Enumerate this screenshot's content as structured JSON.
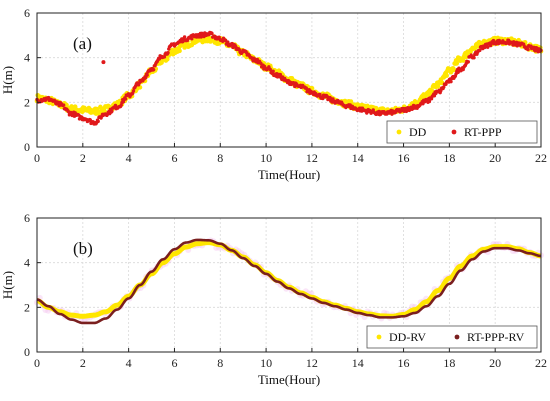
{
  "chart_data": [
    {
      "type": "scatter",
      "panel_label": "(a)",
      "xlabel": "Time(Hour)",
      "ylabel": "H(m)",
      "xlim": [
        0,
        22
      ],
      "ylim": [
        0,
        6
      ],
      "xticks": [
        0,
        2,
        4,
        6,
        8,
        10,
        12,
        14,
        16,
        18,
        20,
        22
      ],
      "yticks": [
        0,
        2,
        4,
        6
      ],
      "grid": true,
      "legend_position": "bottom-right",
      "x": [
        0,
        0.5,
        1,
        1.5,
        2,
        2.5,
        3,
        3.5,
        4,
        4.5,
        5,
        5.5,
        6,
        6.5,
        7,
        7.5,
        8,
        8.5,
        9,
        9.5,
        10,
        10.5,
        11,
        11.5,
        12,
        12.5,
        13,
        13.5,
        14,
        14.5,
        15,
        15.5,
        16,
        16.5,
        17,
        17.5,
        18,
        18.5,
        19,
        19.5,
        20,
        20.5,
        21,
        21.5,
        22
      ],
      "series": [
        {
          "name": "DD",
          "color": "#FFE600",
          "values": [
            2.2,
            2.1,
            1.9,
            1.7,
            1.65,
            1.6,
            1.7,
            1.9,
            2.3,
            2.8,
            3.4,
            3.9,
            4.3,
            4.6,
            4.8,
            4.85,
            4.75,
            4.5,
            4.2,
            3.9,
            3.6,
            3.3,
            3.0,
            2.75,
            2.5,
            2.3,
            2.1,
            1.95,
            1.8,
            1.7,
            1.62,
            1.6,
            1.7,
            1.95,
            2.3,
            2.8,
            3.4,
            3.95,
            4.4,
            4.65,
            4.75,
            4.75,
            4.65,
            4.5,
            4.35
          ]
        },
        {
          "name": "RT-PPP",
          "color": "#E0191B",
          "values": [
            2.1,
            2.15,
            1.9,
            1.5,
            1.3,
            1.1,
            1.5,
            1.8,
            2.3,
            2.9,
            3.5,
            4.1,
            4.6,
            4.85,
            5.0,
            5.05,
            4.85,
            4.55,
            4.25,
            3.9,
            3.55,
            3.2,
            2.9,
            2.7,
            2.45,
            2.25,
            2.05,
            1.85,
            1.7,
            1.6,
            1.5,
            1.55,
            1.65,
            1.8,
            2.05,
            2.45,
            2.95,
            3.5,
            4.05,
            4.5,
            4.7,
            4.7,
            4.6,
            4.45,
            4.3
          ]
        }
      ],
      "outlier": {
        "series": "RT-PPP",
        "x": 2.9,
        "y": 3.8
      }
    },
    {
      "type": "line",
      "panel_label": "(b)",
      "xlabel": "Time(Hour)",
      "ylabel": "H(m)",
      "xlim": [
        0,
        22
      ],
      "ylim": [
        0,
        6
      ],
      "xticks": [
        0,
        2,
        4,
        6,
        8,
        10,
        12,
        14,
        16,
        18,
        20,
        22
      ],
      "yticks": [
        0,
        2,
        4,
        6
      ],
      "grid": true,
      "legend_position": "bottom-right",
      "x": [
        0,
        0.5,
        1,
        1.5,
        2,
        2.5,
        3,
        3.5,
        4,
        4.5,
        5,
        5.5,
        6,
        6.5,
        7,
        7.5,
        8,
        8.5,
        9,
        9.5,
        10,
        10.5,
        11,
        11.5,
        12,
        12.5,
        13,
        13.5,
        14,
        14.5,
        15,
        15.5,
        16,
        16.5,
        17,
        17.5,
        18,
        18.5,
        19,
        19.5,
        20,
        20.5,
        21,
        21.5,
        22
      ],
      "series": [
        {
          "name": "DD-RV",
          "color": "#FFE600",
          "values": [
            2.3,
            2.0,
            1.8,
            1.65,
            1.6,
            1.65,
            1.8,
            2.1,
            2.5,
            3.0,
            3.5,
            4.0,
            4.4,
            4.7,
            4.85,
            4.9,
            4.8,
            4.55,
            4.25,
            3.9,
            3.55,
            3.2,
            2.9,
            2.65,
            2.45,
            2.25,
            2.1,
            1.95,
            1.8,
            1.7,
            1.62,
            1.6,
            1.68,
            1.9,
            2.25,
            2.75,
            3.3,
            3.85,
            4.3,
            4.6,
            4.72,
            4.72,
            4.62,
            4.45,
            4.3
          ]
        },
        {
          "name": "RT-PPP-RV",
          "color": "#7A1F1F",
          "values": [
            2.35,
            2.05,
            1.7,
            1.45,
            1.3,
            1.3,
            1.5,
            1.9,
            2.4,
            3.0,
            3.6,
            4.15,
            4.6,
            4.9,
            5.02,
            5.0,
            4.85,
            4.55,
            4.2,
            3.85,
            3.5,
            3.15,
            2.85,
            2.6,
            2.4,
            2.2,
            2.05,
            1.9,
            1.75,
            1.65,
            1.55,
            1.55,
            1.6,
            1.75,
            2.05,
            2.5,
            3.05,
            3.65,
            4.15,
            4.5,
            4.65,
            4.65,
            4.55,
            4.42,
            4.3
          ]
        }
      ]
    }
  ]
}
